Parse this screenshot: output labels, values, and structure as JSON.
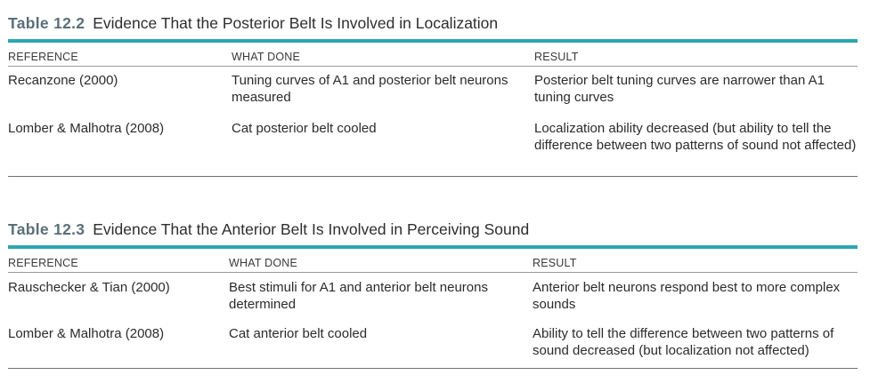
{
  "tables": [
    {
      "number": "Table 12.2",
      "title": "Evidence That the Posterior Belt Is Involved in Localization",
      "headers": [
        "REFERENCE",
        "WHAT DONE",
        "RESULT"
      ],
      "rows": [
        [
          "Recanzone (2000)",
          "Tuning curves of A1 and posterior belt neurons measured",
          "Posterior belt tuning curves are narrower than A1 tuning curves"
        ],
        [
          "Lomber & Malhotra (2008)",
          "Cat posterior belt cooled",
          "Localization ability decreased (but ability to tell the difference between two patterns of sound not affected)"
        ]
      ]
    },
    {
      "number": "Table 12.3",
      "title": "Evidence That the Anterior Belt Is Involved in Perceiving Sound",
      "headers": [
        "REFERENCE",
        "WHAT DONE",
        "RESULT"
      ],
      "rows": [
        [
          "Rauschecker & Tian (2000)",
          "Best stimuli for A1 and anterior belt neurons determined",
          "Anterior belt neurons respond best to more complex sounds"
        ],
        [
          "Lomber & Malhotra (2008)",
          "Cat anterior belt cooled",
          "Ability to tell the difference between two patterns of sound decreased (but localization not affected)"
        ]
      ]
    }
  ],
  "colors": {
    "accent_rule": "#2aa6b4",
    "table_number": "#5a6f78"
  }
}
